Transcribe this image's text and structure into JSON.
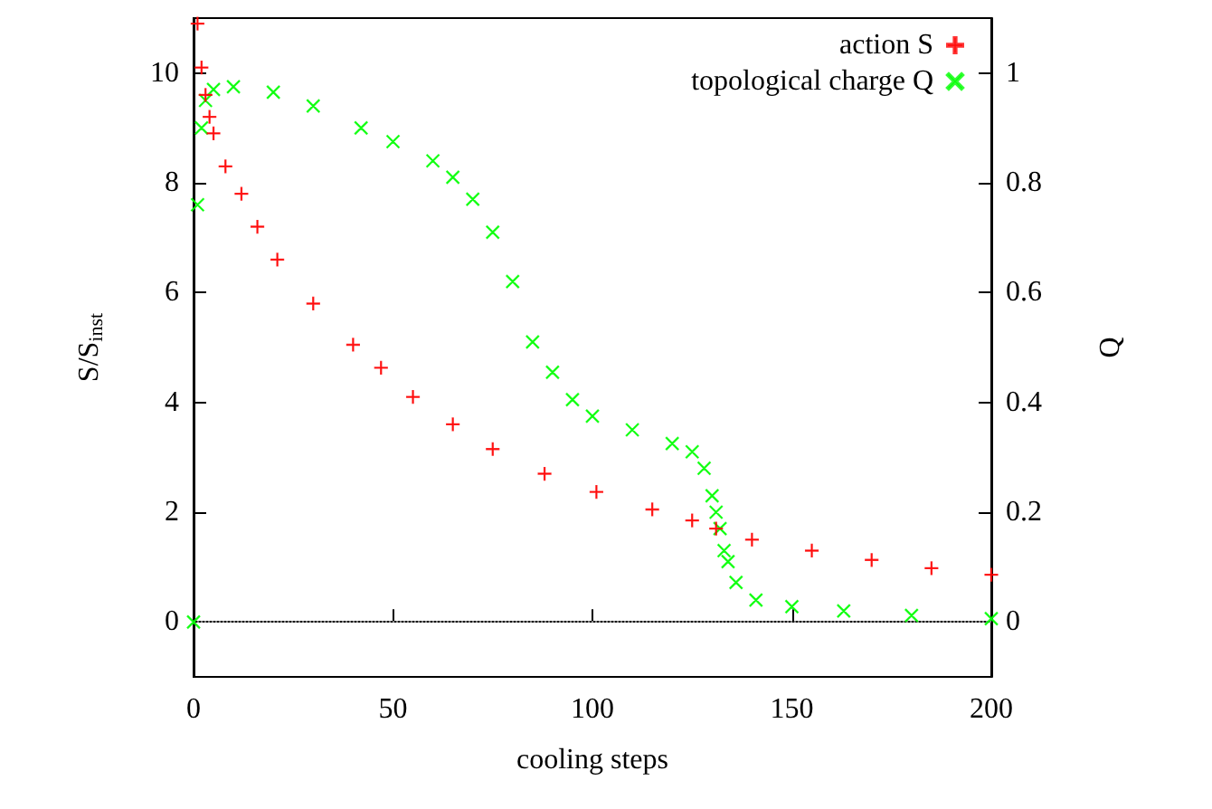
{
  "chart_data": {
    "type": "scatter",
    "xlabel": "cooling steps",
    "ylabel": "S/S$_{inst}$",
    "y2label": "Q",
    "xlim": [
      0,
      200
    ],
    "xticks": [
      0,
      50,
      100,
      150,
      200
    ],
    "ylim": [
      -1,
      11
    ],
    "yticks": [
      0,
      2,
      4,
      6,
      8,
      10
    ],
    "y2lim": [
      -0.1,
      1.1
    ],
    "y2ticks": [
      0,
      0.2,
      0.4,
      0.6,
      0.8,
      1
    ],
    "grid": false,
    "legend": "top right",
    "ref_lines": [
      {
        "axis": "y",
        "value": 0,
        "color": "#808080",
        "line_style": "dotted"
      }
    ],
    "series": [
      {
        "name": "action S",
        "color": "#ff0000",
        "marker": "plus",
        "x": [
          1,
          2,
          3,
          4,
          5,
          8,
          12,
          16,
          21,
          30,
          40,
          47,
          55,
          65,
          75,
          88,
          101,
          115,
          125,
          131,
          140,
          155,
          170,
          185,
          200
        ],
        "values": [
          10.9,
          10.1,
          9.6,
          9.2,
          8.9,
          8.3,
          7.8,
          7.2,
          6.6,
          5.8,
          5.05,
          4.63,
          4.1,
          3.6,
          3.15,
          2.7,
          2.37,
          2.05,
          1.85,
          1.7,
          1.5,
          1.3,
          1.13,
          0.98,
          0.86
        ]
      },
      {
        "name": "topological charge Q",
        "color": "#00ff00",
        "marker": "cross",
        "axis": "y2",
        "x": [
          0,
          1,
          2,
          3,
          5,
          10,
          20,
          30,
          42,
          50,
          60,
          65,
          70,
          75,
          80,
          85,
          90,
          95,
          100,
          110,
          120,
          125,
          128,
          130,
          131,
          132,
          133,
          134,
          136,
          141,
          150,
          163,
          180,
          200
        ],
        "values": [
          0,
          0.76,
          0.9,
          0.95,
          0.97,
          0.975,
          0.965,
          0.94,
          0.9,
          0.875,
          0.84,
          0.81,
          0.77,
          0.71,
          0.62,
          0.51,
          0.455,
          0.405,
          0.375,
          0.35,
          0.325,
          0.31,
          0.28,
          0.23,
          0.2,
          0.17,
          0.13,
          0.11,
          0.072,
          0.04,
          0.028,
          0.02,
          0.012,
          0.006
        ]
      }
    ]
  }
}
